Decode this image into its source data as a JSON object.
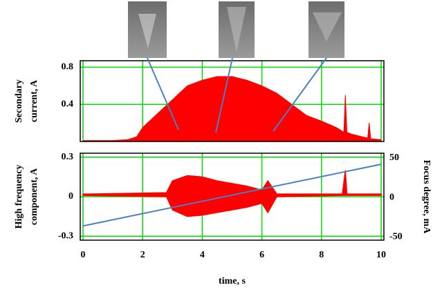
{
  "chart_data": [
    {
      "type": "area",
      "ylabel": [
        "Secondary",
        "current, A"
      ],
      "xlim": [
        0,
        10
      ],
      "xticks": [
        0,
        2,
        4,
        6,
        8,
        10
      ],
      "xtick_labels": false,
      "ylim": [
        0,
        0.87
      ],
      "yticks": [
        0.4,
        0.8
      ],
      "grid": true,
      "color": "#ff0000",
      "x": [
        0,
        1,
        1.5,
        1.8,
        2,
        2.5,
        3,
        3.5,
        4,
        4.5,
        5,
        5.5,
        6,
        6.5,
        7,
        7.5,
        8,
        8.5,
        8.75,
        8.8,
        8.85,
        9,
        9.5,
        9.55,
        9.6,
        9.65,
        10
      ],
      "values": [
        0.01,
        0.01,
        0.02,
        0.05,
        0.15,
        0.3,
        0.45,
        0.6,
        0.66,
        0.7,
        0.7,
        0.66,
        0.6,
        0.52,
        0.4,
        0.28,
        0.22,
        0.15,
        0.1,
        0.5,
        0.1,
        0.08,
        0.04,
        0.04,
        0.2,
        0.03,
        0.02
      ]
    },
    {
      "type": "band",
      "ylabel": [
        "High frequency",
        "component, A"
      ],
      "y2label": "Focus degree, mA",
      "xlabel": "time, s",
      "xlim": [
        0,
        10
      ],
      "xticks": [
        0,
        2,
        4,
        6,
        8,
        10
      ],
      "ylim": [
        -0.33,
        0.33
      ],
      "yticks": [
        -0.3,
        0,
        0.3
      ],
      "grid": true,
      "y2lim": [
        -54,
        56
      ],
      "y2ticks": [
        -50,
        0,
        50
      ],
      "color": "#ff0000",
      "x": [
        0,
        2.8,
        3,
        3.5,
        4,
        4.5,
        5,
        5.5,
        6,
        6.2,
        6.5,
        8.7,
        8.8,
        8.85,
        10
      ],
      "upper": [
        0.02,
        0.03,
        0.12,
        0.16,
        0.15,
        0.12,
        0.1,
        0.08,
        0.05,
        0.12,
        0.02,
        0.02,
        0.2,
        0.02,
        0.02
      ],
      "lower": [
        0.01,
        0.0,
        -0.1,
        -0.15,
        -0.14,
        -0.12,
        -0.1,
        -0.08,
        -0.05,
        -0.12,
        0.0,
        0.01,
        0.01,
        0.01,
        0.01
      ],
      "series": [
        {
          "axis": "y2",
          "color": "#4a7fc1",
          "x": [
            0,
            10
          ],
          "values": [
            -36,
            42
          ]
        }
      ]
    }
  ]
}
